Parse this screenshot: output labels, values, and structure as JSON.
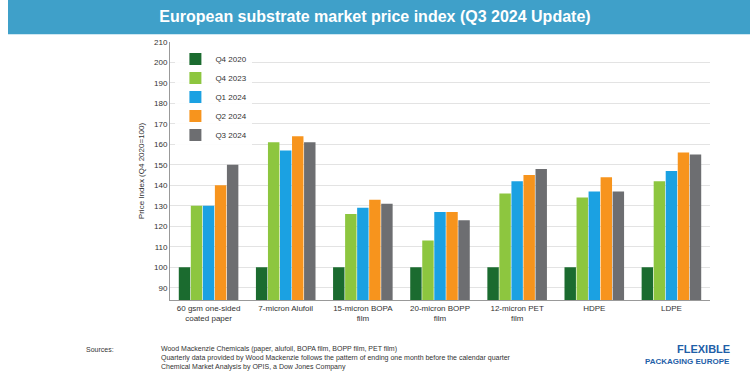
{
  "chart_data": {
    "type": "bar",
    "title": "European substrate market price index (Q3 2024 Update)",
    "y_label": "Price Index (Q4 2020=100)",
    "categories": [
      "60 gsm one-sided coated paper",
      "7-micron Alufoil",
      "15-micron BOPA film",
      "20-micron BOPP film",
      "12-micron PET film",
      "HDPE",
      "LDPE"
    ],
    "series": [
      {
        "name": "Q4 2020",
        "color": "#1b6b2f",
        "values": [
          100,
          100,
          100,
          100,
          100,
          100,
          100
        ]
      },
      {
        "name": "Q4 2023",
        "color": "#8dc63f",
        "values": [
          130,
          161,
          126,
          113,
          136,
          134,
          142
        ]
      },
      {
        "name": "Q1 2024",
        "color": "#1ba1e2",
        "values": [
          130,
          157,
          129,
          127,
          142,
          137,
          147
        ]
      },
      {
        "name": "Q2 2024",
        "color": "#f7941d",
        "values": [
          140,
          164,
          133,
          127,
          145,
          144,
          156
        ]
      },
      {
        "name": "Q3 2024",
        "color": "#6d6e71",
        "values": [
          150,
          161,
          131,
          123,
          148,
          137,
          155
        ]
      }
    ],
    "ylim": [
      84,
      210
    ],
    "yticks": [
      90,
      100,
      110,
      120,
      130,
      140,
      150,
      160,
      170,
      180,
      190,
      200,
      210
    ],
    "grid": true,
    "legend": "top-left",
    "sources_label": "Sources:",
    "sources": [
      "Wood Mackenzie Chemicals (paper, alufoil, BOPA film, BOPP film, PET film)",
      "Quarterly data provided by Wood Mackenzie follows the pattern of ending one month before the calendar quarter",
      "Chemical Market Analysis by OPIS, a Dow Jones Company"
    ],
    "logo": [
      "FLEXIBLE",
      "PACKAGING EUROPE"
    ]
  }
}
